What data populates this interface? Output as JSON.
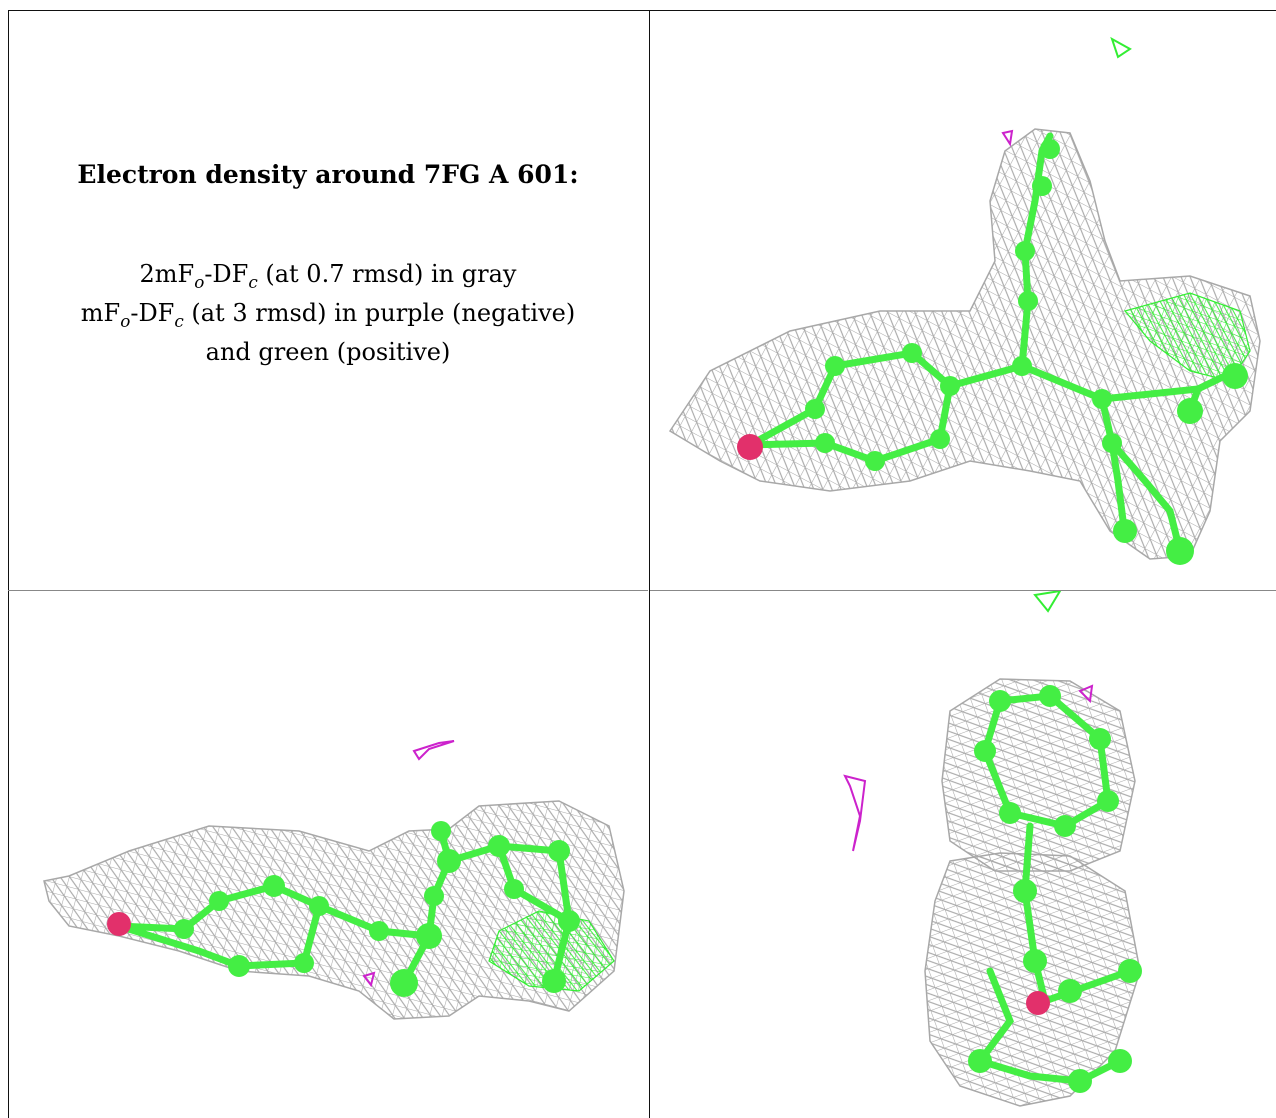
{
  "caption": {
    "title": "Electron density around 7FG A 601:",
    "line1_prefix": "2mF",
    "line1_sub1": "o",
    "line1_mid": "-DF",
    "line1_sub2": "c",
    "line1_suffix": " (at 0.7 rmsd) in gray",
    "line2_prefix": "mF",
    "line2_sub1": "o",
    "line2_mid": "-DF",
    "line2_sub2": "c",
    "line2_suffix": " (at 3 rmsd) in purple (negative)",
    "line3": "and green (positive)"
  },
  "colors": {
    "mesh": "#a8a8a8",
    "carbon": "#44ee44",
    "bond": "#44ee44",
    "oxygen": "#e2306b",
    "negative": "#cc22cc",
    "positive": "#33ee33",
    "border": "#111111"
  }
}
